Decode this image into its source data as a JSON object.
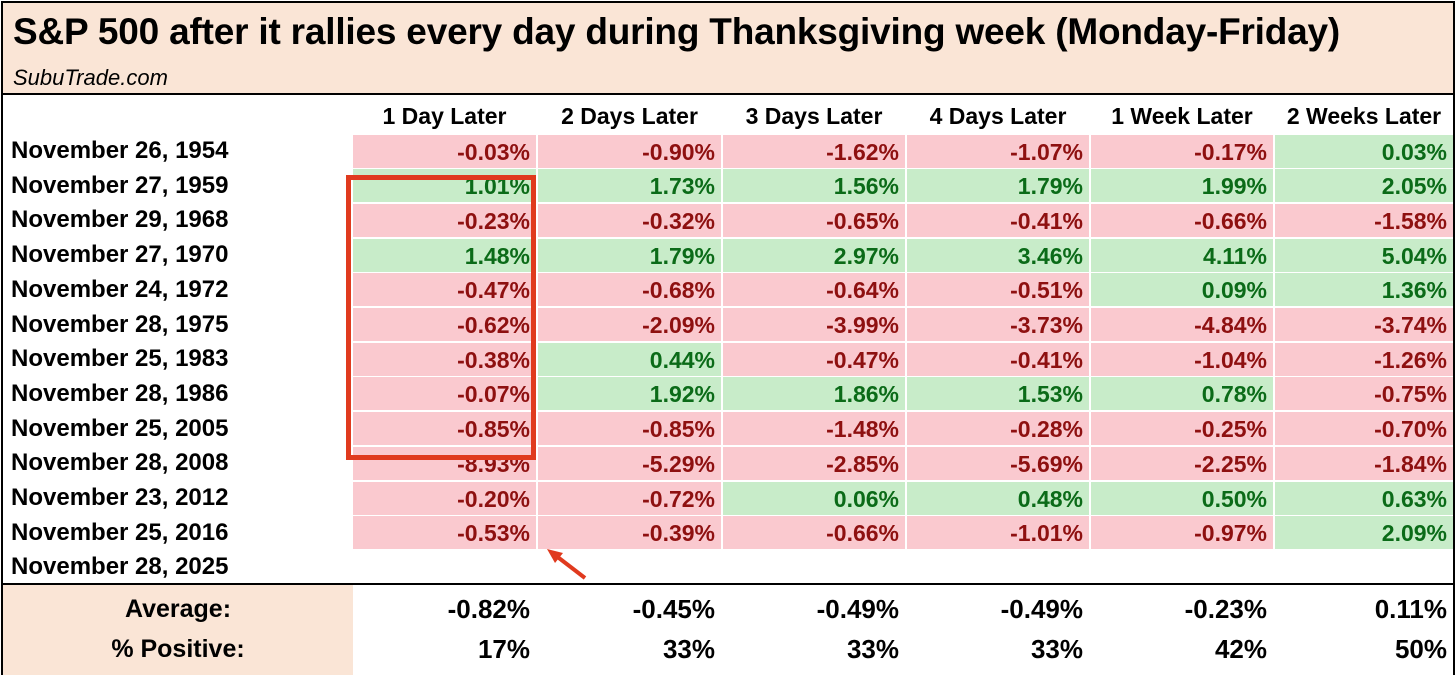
{
  "title": "S&P 500 after it rallies every day during Thanksgiving week (Monday-Friday)",
  "subtitle": "SubuTrade.com",
  "colors": {
    "positive_bg": "#c8ecc9",
    "positive_text": "#0b6b18",
    "negative_bg": "#fac9cf",
    "negative_text": "#8e1010",
    "header_bg": "#fae5d6",
    "highlight": "#e03a1e"
  },
  "chart_data": {
    "type": "table",
    "columns": [
      "1 Day Later",
      "2 Days Later",
      "3 Days Later",
      "4 Days Later",
      "1 Week Later",
      "2 Weeks Later"
    ],
    "rows": [
      {
        "date": "November 26, 1954",
        "values": [
          "-0.03%",
          "-0.90%",
          "-1.62%",
          "-1.07%",
          "-0.17%",
          "0.03%"
        ]
      },
      {
        "date": "November 27, 1959",
        "values": [
          "1.01%",
          "1.73%",
          "1.56%",
          "1.79%",
          "1.99%",
          "2.05%"
        ]
      },
      {
        "date": "November 29, 1968",
        "values": [
          "-0.23%",
          "-0.32%",
          "-0.65%",
          "-0.41%",
          "-0.66%",
          "-1.58%"
        ]
      },
      {
        "date": "November 27, 1970",
        "values": [
          "1.48%",
          "1.79%",
          "2.97%",
          "3.46%",
          "4.11%",
          "5.04%"
        ]
      },
      {
        "date": "November 24, 1972",
        "values": [
          "-0.47%",
          "-0.68%",
          "-0.64%",
          "-0.51%",
          "0.09%",
          "1.36%"
        ]
      },
      {
        "date": "November 28, 1975",
        "values": [
          "-0.62%",
          "-2.09%",
          "-3.99%",
          "-3.73%",
          "-4.84%",
          "-3.74%"
        ]
      },
      {
        "date": "November 25, 1983",
        "values": [
          "-0.38%",
          "0.44%",
          "-0.47%",
          "-0.41%",
          "-1.04%",
          "-1.26%"
        ]
      },
      {
        "date": "November 28, 1986",
        "values": [
          "-0.07%",
          "1.92%",
          "1.86%",
          "1.53%",
          "0.78%",
          "-0.75%"
        ]
      },
      {
        "date": "November 25, 2005",
        "values": [
          "-0.85%",
          "-0.85%",
          "-1.48%",
          "-0.28%",
          "-0.25%",
          "-0.70%"
        ]
      },
      {
        "date": "November 28, 2008",
        "values": [
          "-8.93%",
          "-5.29%",
          "-2.85%",
          "-5.69%",
          "-2.25%",
          "-1.84%"
        ]
      },
      {
        "date": "November 23, 2012",
        "values": [
          "-0.20%",
          "-0.72%",
          "0.06%",
          "0.48%",
          "0.50%",
          "0.63%"
        ]
      },
      {
        "date": "November 25, 2016",
        "values": [
          "-0.53%",
          "-0.39%",
          "-0.66%",
          "-1.01%",
          "-0.97%",
          "2.09%"
        ]
      },
      {
        "date": "November 28, 2025",
        "values": []
      }
    ],
    "summary": [
      {
        "label": "Average:",
        "values": [
          "-0.82%",
          "-0.45%",
          "-0.49%",
          "-0.49%",
          "-0.23%",
          "0.11%"
        ]
      },
      {
        "label": "% Positive:",
        "values": [
          "17%",
          "33%",
          "33%",
          "33%",
          "42%",
          "50%"
        ]
      }
    ],
    "highlighted_column": "1 Day Later"
  }
}
